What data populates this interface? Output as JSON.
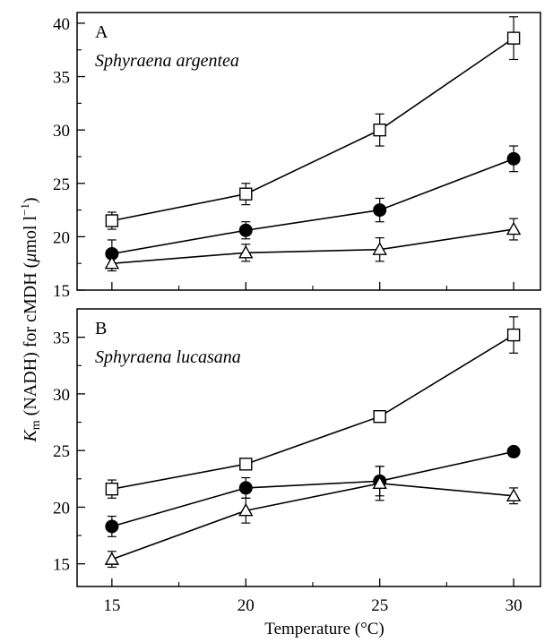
{
  "chart_data": [
    {
      "type": "line",
      "panel_label": "A",
      "species": "Sphyraena argentea",
      "x": [
        15,
        20,
        25,
        30
      ],
      "xlim": [
        13.7,
        31
      ],
      "ylim": [
        15,
        41
      ],
      "yticks": [
        15,
        20,
        25,
        30,
        35,
        40
      ],
      "series": [
        {
          "marker": "open-square",
          "values": [
            21.5,
            24.0,
            30.0,
            38.6
          ],
          "errors": [
            0.8,
            1.0,
            1.5,
            2.0
          ]
        },
        {
          "marker": "filled-circle",
          "values": [
            18.4,
            20.6,
            22.5,
            27.3
          ],
          "errors": [
            1.3,
            0.8,
            1.1,
            1.2
          ]
        },
        {
          "marker": "open-triangle",
          "values": [
            17.5,
            18.5,
            18.8,
            20.7
          ],
          "errors": [
            0.7,
            0.8,
            1.1,
            1.0
          ]
        }
      ]
    },
    {
      "type": "line",
      "panel_label": "B",
      "species": "Sphyraena lucasana",
      "x": [
        15,
        20,
        25,
        30
      ],
      "xlim": [
        13.7,
        31
      ],
      "ylim": [
        13,
        37.5
      ],
      "yticks": [
        15,
        20,
        25,
        30,
        35
      ],
      "series": [
        {
          "marker": "open-square",
          "values": [
            21.6,
            23.8,
            28.0,
            35.2
          ],
          "errors": [
            0.8,
            0.5,
            0.4,
            1.6
          ]
        },
        {
          "marker": "filled-circle",
          "values": [
            18.3,
            21.7,
            22.3,
            24.9
          ],
          "errors": [
            0.9,
            0.9,
            1.3,
            0.3
          ]
        },
        {
          "marker": "open-triangle",
          "values": [
            15.4,
            19.7,
            22.1,
            21.0
          ],
          "errors": [
            0.7,
            1.1,
            1.5,
            0.7
          ]
        }
      ]
    }
  ],
  "shared": {
    "xticks": [
      15,
      20,
      25,
      30
    ],
    "xlabel": "Temperature (°C)",
    "ylabel_main": "K",
    "ylabel_sub": "m",
    "ylabel_mid": " (NADH) for cMDH (",
    "ylabel_mu": "μ",
    "ylabel_unit": "mol l",
    "ylabel_sup": "−1",
    "ylabel_close": ")"
  }
}
